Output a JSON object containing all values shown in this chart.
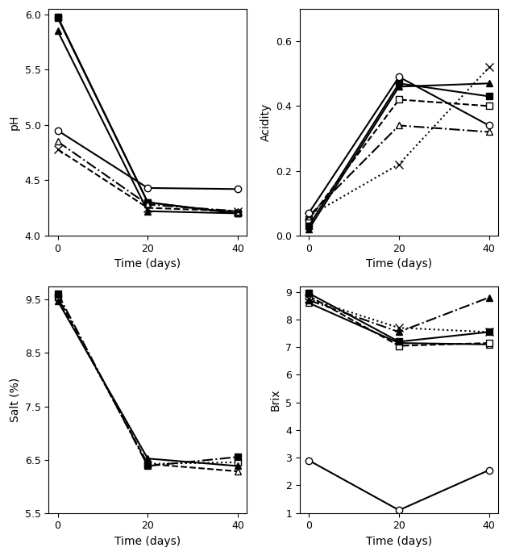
{
  "time": [
    0,
    20,
    40
  ],
  "pH": {
    "filled_square": [
      5.98,
      4.3,
      4.2
    ],
    "filled_triangle": [
      5.85,
      4.22,
      4.2
    ],
    "open_circle": [
      4.95,
      4.43,
      4.42
    ],
    "open_triangle": [
      4.85,
      4.28,
      4.22
    ],
    "cross": [
      4.78,
      4.25,
      4.22
    ],
    "open_square": [
      5.97,
      4.3,
      4.2
    ]
  },
  "acidity": {
    "open_circle": [
      0.07,
      0.49,
      0.34
    ],
    "filled_square": [
      0.03,
      0.47,
      0.43
    ],
    "filled_triangle": [
      0.02,
      0.46,
      0.47
    ],
    "open_square": [
      0.05,
      0.42,
      0.4
    ],
    "open_triangle": [
      0.06,
      0.34,
      0.32
    ],
    "cross": [
      0.06,
      0.22,
      0.52
    ]
  },
  "salt": {
    "filled_square": [
      9.62,
      6.38,
      6.55
    ],
    "open_square": [
      9.55,
      6.42,
      6.45
    ],
    "filled_triangle": [
      9.48,
      6.52,
      6.38
    ],
    "open_triangle": [
      9.55,
      6.42,
      6.28
    ]
  },
  "brix": {
    "filled_square": [
      8.95,
      7.2,
      7.55
    ],
    "open_square": [
      8.85,
      7.05,
      7.15
    ],
    "open_triangle": [
      8.6,
      7.15,
      7.1
    ],
    "filled_triangle": [
      8.7,
      7.55,
      8.8
    ],
    "cross": [
      8.75,
      7.7,
      7.55
    ],
    "open_circle": [
      2.9,
      1.1,
      2.55
    ]
  },
  "ph_ylim": [
    4.0,
    6.05
  ],
  "acidity_ylim": [
    0.0,
    0.7
  ],
  "salt_ylim": [
    5.5,
    9.75
  ],
  "brix_ylim": [
    1.0,
    9.2
  ],
  "ph_yticks": [
    4.0,
    4.5,
    5.0,
    5.5,
    6.0
  ],
  "acidity_yticks": [
    0.0,
    0.2,
    0.4,
    0.6
  ],
  "salt_yticks": [
    5.5,
    6.5,
    7.5,
    8.5,
    9.5
  ],
  "brix_yticks": [
    1,
    2,
    3,
    4,
    5,
    6,
    7,
    8,
    9
  ],
  "xticks": [
    0,
    20,
    40
  ],
  "xlabel": "Time (days)",
  "ph_ylabel": "pH",
  "acidity_ylabel": "Acidity",
  "salt_ylabel": "Salt (%)",
  "brix_ylabel": "Brix"
}
